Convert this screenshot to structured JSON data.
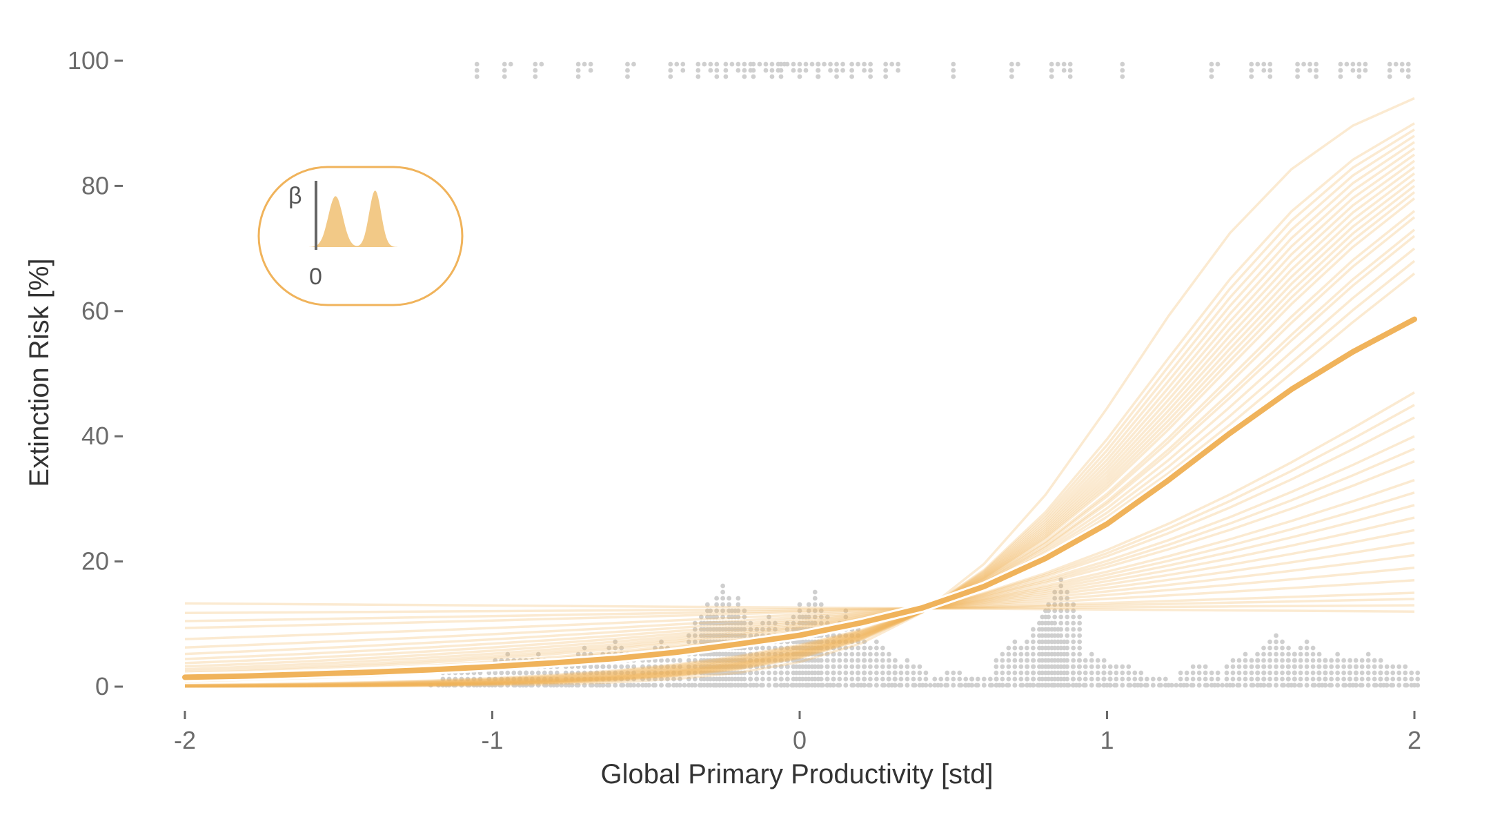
{
  "chart_data": {
    "type": "line",
    "title": "",
    "xlabel": "Global Primary Productivity [std]",
    "ylabel": "Extinction Risk [%]",
    "xlim": [
      -2,
      2
    ],
    "ylim": [
      0,
      100
    ],
    "x_ticks": [
      "-2",
      "-1",
      "0",
      "1",
      "2"
    ],
    "y_ticks": [
      "0",
      "20",
      "40",
      "60",
      "80",
      "100"
    ],
    "grid": false,
    "legend": "none",
    "colors": {
      "curve": "#f0b35b",
      "points": "#cfcfcf",
      "axis": "#6b6b6b"
    },
    "x": [
      -2.0,
      -1.8,
      -1.6,
      -1.4,
      -1.2,
      -1.0,
      -0.8,
      -0.6,
      -0.4,
      -0.2,
      0.0,
      0.2,
      0.4,
      0.6,
      0.8,
      1.0,
      1.2,
      1.4,
      1.6,
      1.8,
      2.0
    ],
    "mean_curve": [
      1.5,
      1.7,
      2.0,
      2.3,
      2.7,
      3.2,
      3.8,
      4.5,
      5.5,
      6.8,
      8.2,
      10.2,
      12.6,
      16.0,
      20.5,
      26.0,
      33.0,
      40.5,
      47.5,
      53.5,
      58.7
    ],
    "posterior_draws": {
      "high_group_endpoints_at_x2": [
        94,
        90,
        89,
        88,
        87,
        86,
        85,
        84,
        83,
        82,
        81,
        80,
        79,
        78,
        76,
        75,
        73,
        72,
        70,
        68,
        66
      ],
      "low_group_endpoints_at_x2": [
        47,
        45,
        43,
        40,
        38,
        36,
        33,
        31,
        29,
        27,
        25,
        23,
        21,
        19,
        17,
        15,
        14,
        13,
        12
      ],
      "crossing_point": {
        "x": 0.42,
        "y": 12.5
      }
    },
    "observations": {
      "extinct_y": 100,
      "survived_y": 0,
      "extinct_x_clusters": [
        {
          "x": -1.05,
          "count": 1
        },
        {
          "x": -0.95,
          "count": 3
        },
        {
          "x": -0.85,
          "count": 3
        },
        {
          "x": -0.7,
          "count": 5
        },
        {
          "x": -0.55,
          "count": 4
        },
        {
          "x": -0.4,
          "count": 5
        },
        {
          "x": -0.3,
          "count": 7
        },
        {
          "x": -0.2,
          "count": 10
        },
        {
          "x": -0.1,
          "count": 12
        },
        {
          "x": 0.0,
          "count": 14
        },
        {
          "x": 0.1,
          "count": 10
        },
        {
          "x": 0.2,
          "count": 7
        },
        {
          "x": 0.3,
          "count": 5
        },
        {
          "x": 0.5,
          "count": 1
        },
        {
          "x": 0.7,
          "count": 3
        },
        {
          "x": 0.85,
          "count": 7
        },
        {
          "x": 1.05,
          "count": 2
        },
        {
          "x": 1.35,
          "count": 4
        },
        {
          "x": 1.5,
          "count": 8
        },
        {
          "x": 1.65,
          "count": 7
        },
        {
          "x": 1.8,
          "count": 9
        },
        {
          "x": 1.95,
          "count": 8
        }
      ],
      "survived_histogram": [
        {
          "x": -1.1,
          "stack": 4
        },
        {
          "x": -0.95,
          "stack": 6
        },
        {
          "x": -0.85,
          "stack": 6
        },
        {
          "x": -0.7,
          "stack": 7
        },
        {
          "x": -0.6,
          "stack": 8
        },
        {
          "x": -0.45,
          "stack": 8
        },
        {
          "x": -0.3,
          "stack": 14
        },
        {
          "x": -0.25,
          "stack": 17
        },
        {
          "x": -0.2,
          "stack": 15
        },
        {
          "x": -0.1,
          "stack": 12
        },
        {
          "x": 0.0,
          "stack": 14
        },
        {
          "x": 0.05,
          "stack": 16
        },
        {
          "x": 0.15,
          "stack": 13
        },
        {
          "x": 0.25,
          "stack": 8
        },
        {
          "x": 0.35,
          "stack": 5
        },
        {
          "x": 0.5,
          "stack": 3
        },
        {
          "x": 0.6,
          "stack": 2
        },
        {
          "x": 0.7,
          "stack": 8
        },
        {
          "x": 0.8,
          "stack": 13
        },
        {
          "x": 0.85,
          "stack": 18
        },
        {
          "x": 0.95,
          "stack": 6
        },
        {
          "x": 1.05,
          "stack": 4
        },
        {
          "x": 1.15,
          "stack": 2
        },
        {
          "x": 1.3,
          "stack": 4
        },
        {
          "x": 1.45,
          "stack": 6
        },
        {
          "x": 1.55,
          "stack": 9
        },
        {
          "x": 1.65,
          "stack": 8
        },
        {
          "x": 1.75,
          "stack": 6
        },
        {
          "x": 1.85,
          "stack": 6
        },
        {
          "x": 1.95,
          "stack": 4
        }
      ]
    }
  },
  "inset": {
    "description_symbol": "β",
    "zero_label": "0",
    "peaks": [
      0.9,
      1.0
    ]
  }
}
